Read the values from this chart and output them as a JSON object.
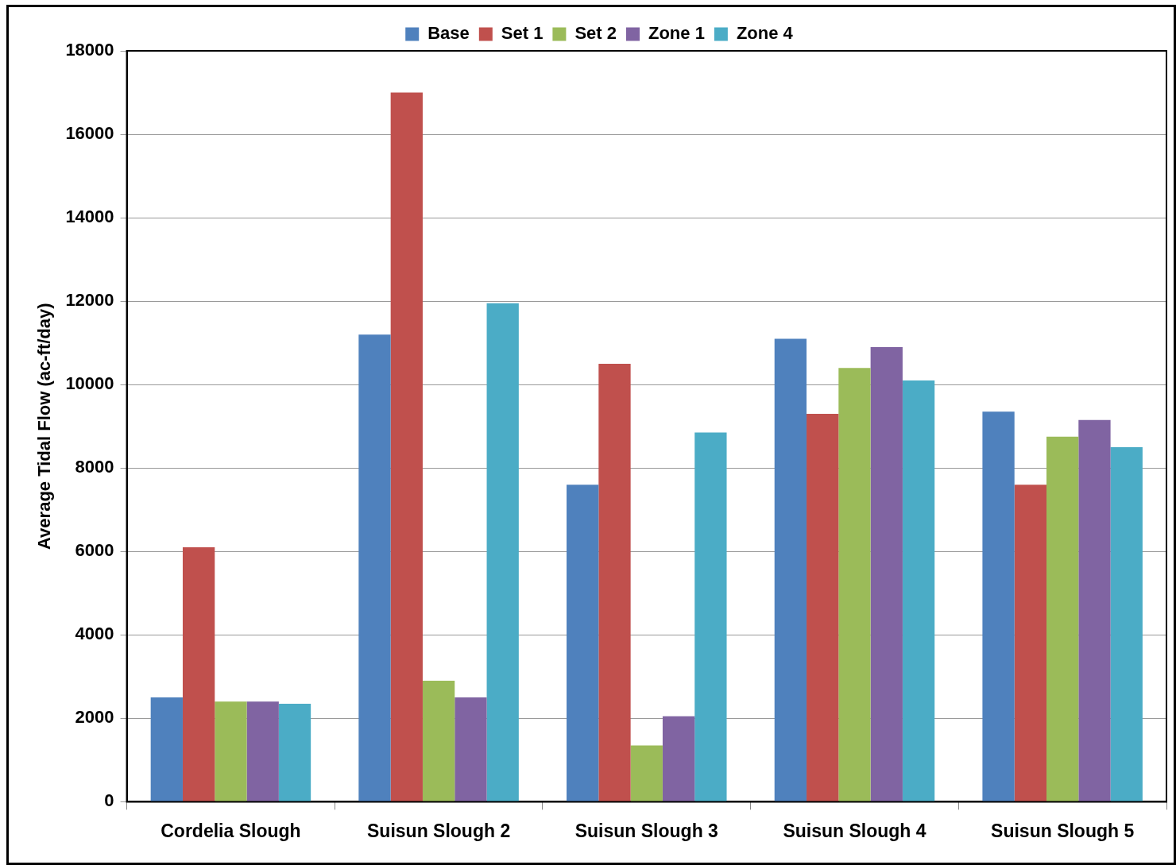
{
  "chart_data": {
    "type": "bar",
    "ylabel": "Average Tidal Flow (ac-ft/day)",
    "categories": [
      "Cordelia Slough",
      "Suisun Slough 2",
      "Suisun Slough 3",
      "Suisun Slough 4",
      "Suisun Slough 5"
    ],
    "series": [
      {
        "name": "Base",
        "color": "#4f81bd",
        "values": [
          2500,
          11200,
          7600,
          11100,
          9350
        ]
      },
      {
        "name": "Set 1",
        "color": "#c0504d",
        "values": [
          6100,
          17000,
          10500,
          9300,
          7600
        ]
      },
      {
        "name": "Set 2",
        "color": "#9bbb59",
        "values": [
          2400,
          2900,
          1350,
          10400,
          8750
        ]
      },
      {
        "name": "Zone 1",
        "color": "#8064a2",
        "values": [
          2400,
          2500,
          2050,
          10900,
          9150
        ]
      },
      {
        "name": "Zone 4",
        "color": "#4bacc6",
        "values": [
          2350,
          11950,
          8850,
          10100,
          8500
        ]
      }
    ],
    "ylim": [
      0,
      18000
    ],
    "yticks": [
      0,
      2000,
      4000,
      6000,
      8000,
      10000,
      12000,
      14000,
      16000,
      18000
    ],
    "grid": "y",
    "legend": "top"
  }
}
